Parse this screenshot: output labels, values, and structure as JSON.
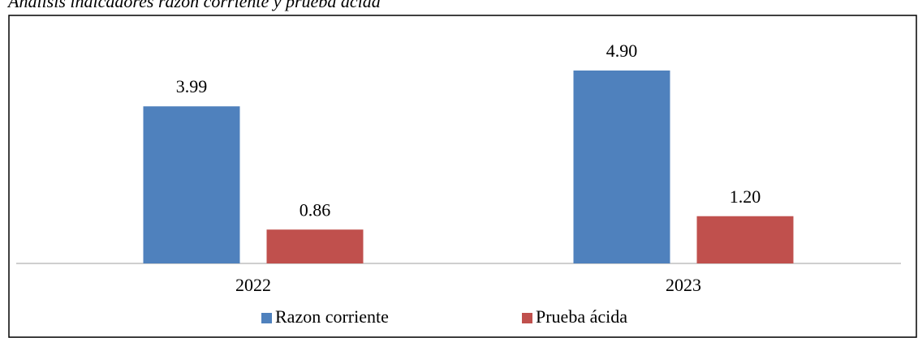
{
  "chart_data": {
    "type": "bar",
    "title": "Análisis indicadores razón corriente y prueba ácida",
    "categories": [
      "2022",
      "2023"
    ],
    "series": [
      {
        "name": "Razon corriente",
        "color": "#4f81bd",
        "values": [
          3.99,
          4.9
        ],
        "value_labels": [
          "3.99",
          "4.90"
        ]
      },
      {
        "name": "Prueba ácida",
        "color": "#c0504d",
        "values": [
          0.86,
          1.2
        ],
        "value_labels": [
          "0.86",
          "1.20"
        ]
      }
    ]
  }
}
